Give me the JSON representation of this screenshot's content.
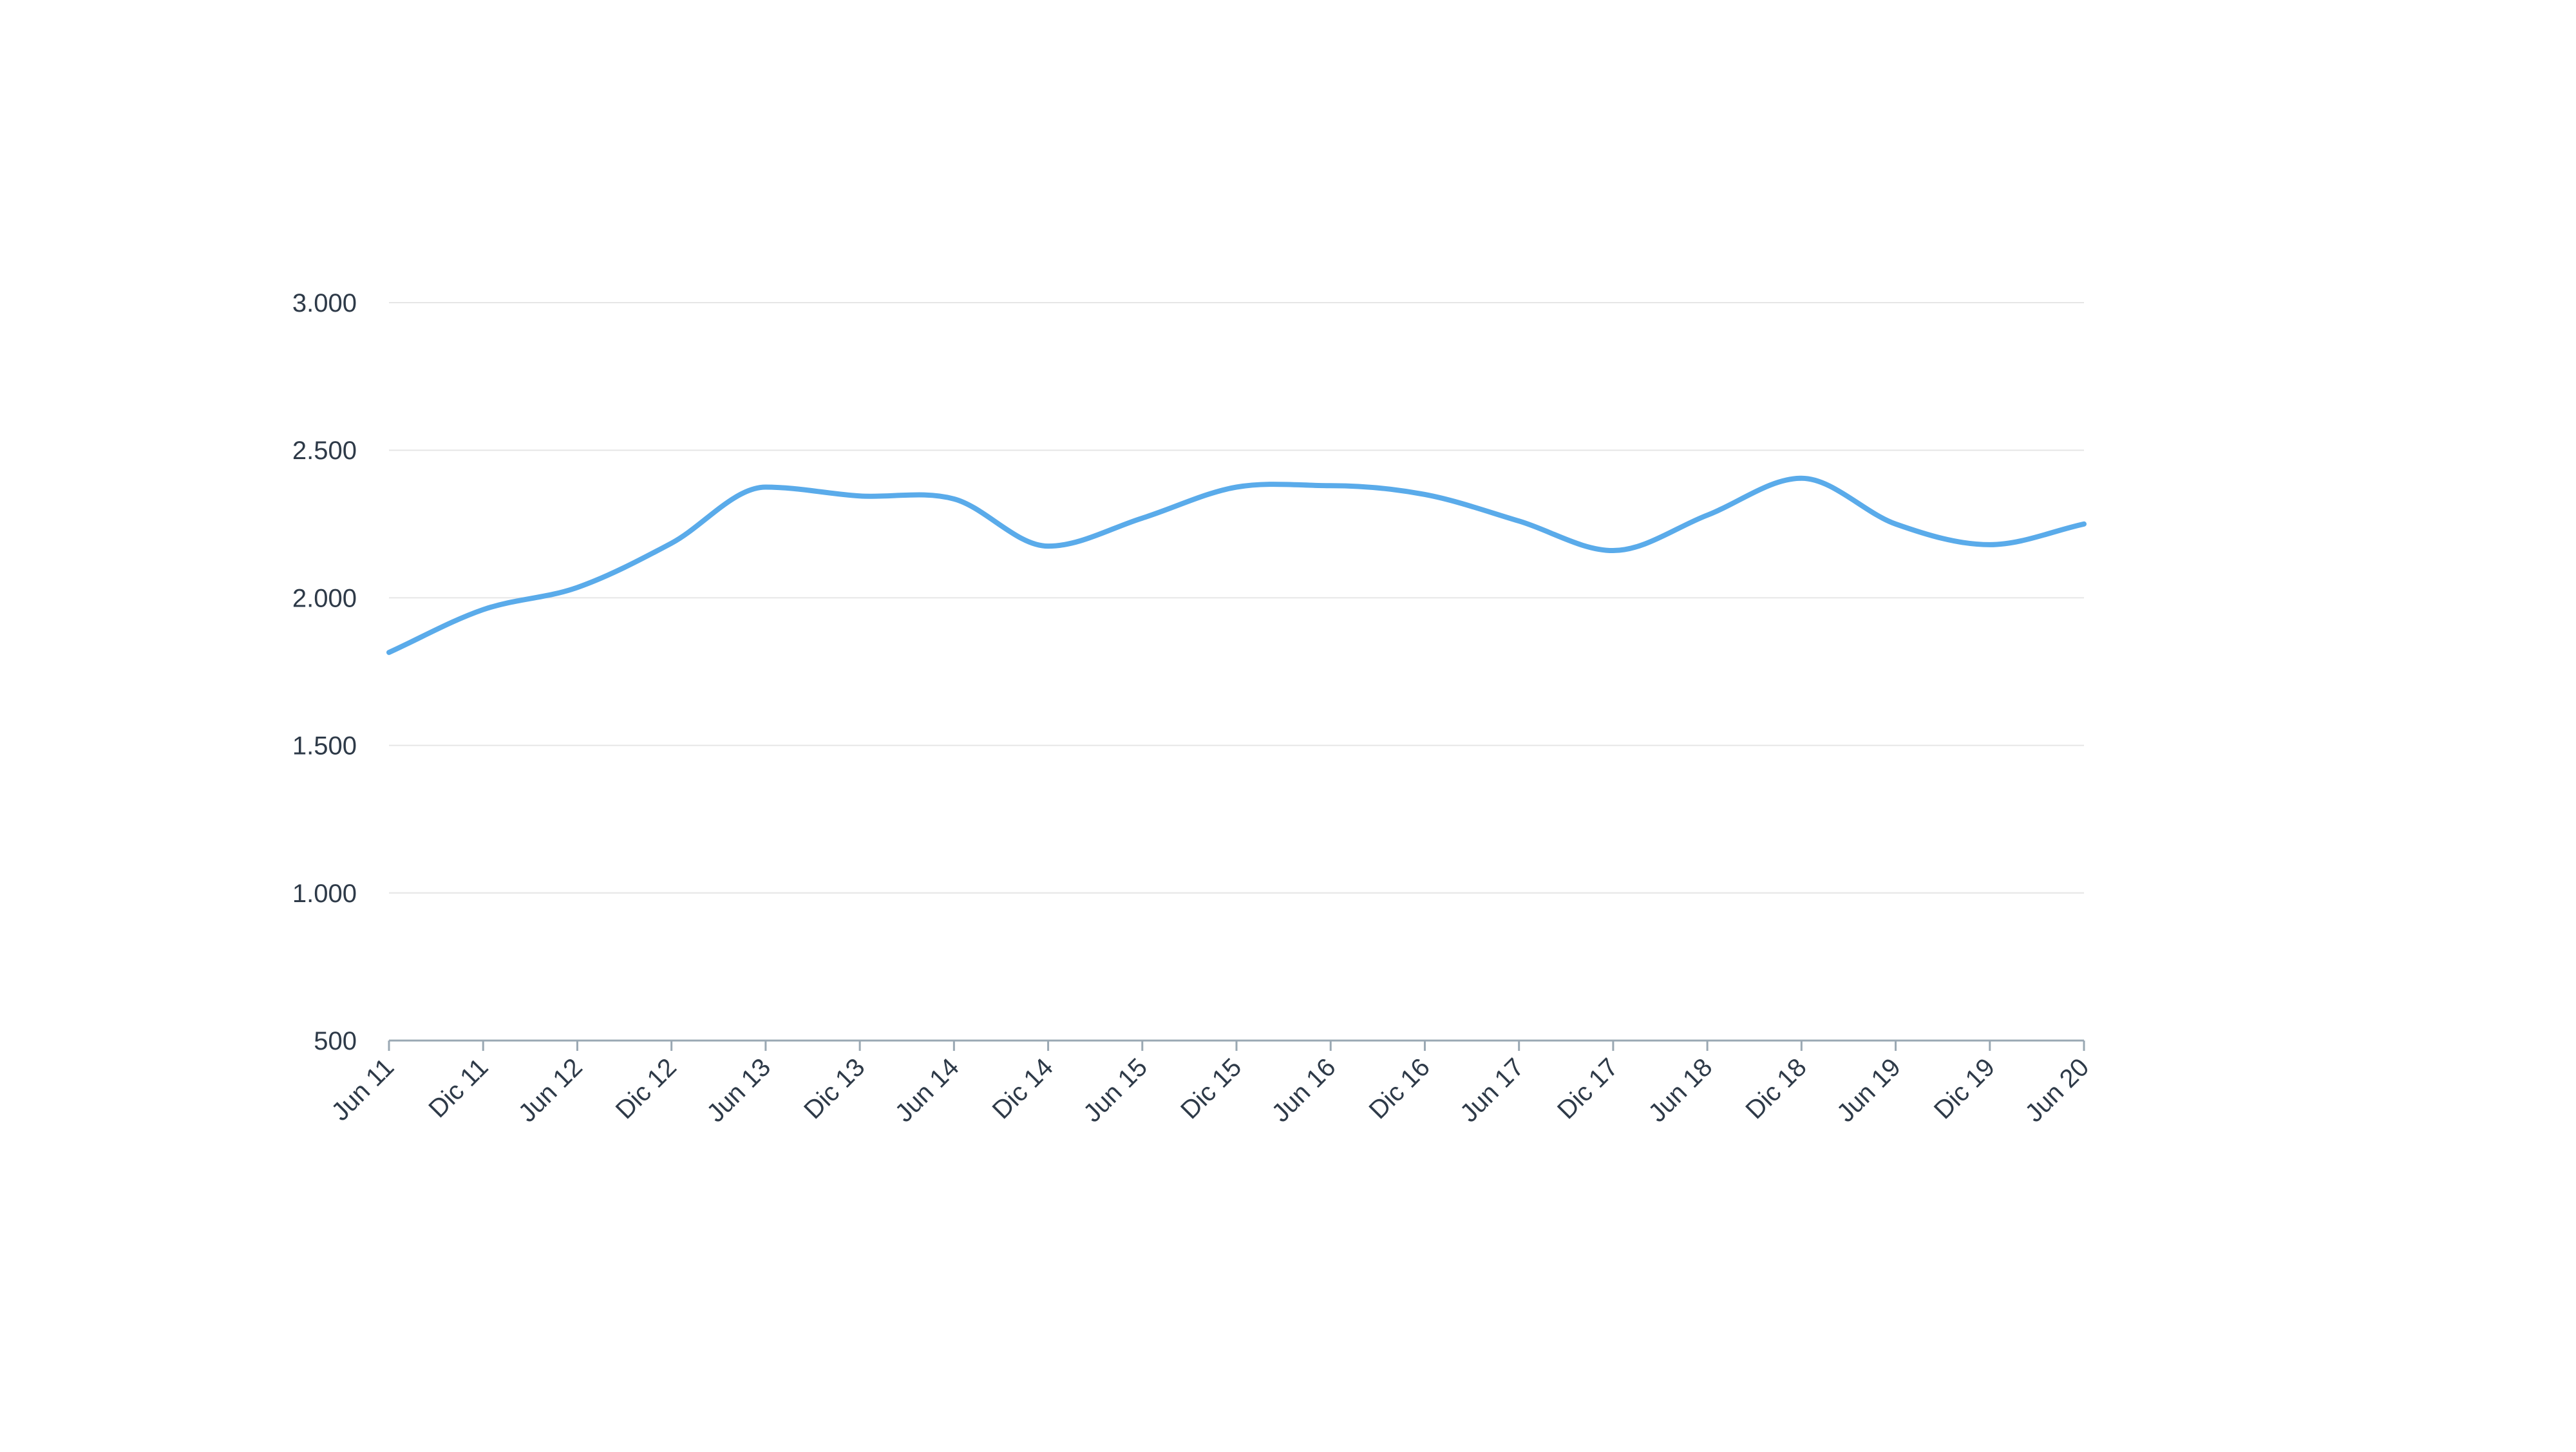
{
  "chart_data": {
    "type": "line",
    "title": "",
    "xlabel": "",
    "ylabel": "",
    "categories": [
      "Jun 11",
      "Dic 11",
      "Jun 12",
      "Dic 12",
      "Jun 13",
      "Dic 13",
      "Jun 14",
      "Dic 14",
      "Jun 15",
      "Dic 15",
      "Jun 16",
      "Dic 16",
      "Jun 17",
      "Dic 17",
      "Jun 18",
      "Dic 18",
      "Jun 19",
      "Dic 19",
      "Jun 20"
    ],
    "series": [
      {
        "values": [
          1815,
          1960,
          2035,
          2185,
          2375,
          2345,
          2335,
          2175,
          2270,
          2375,
          2380,
          2350,
          2260,
          2160,
          2280,
          2405,
          2250,
          2180,
          2250
        ],
        "color": "#5aabea"
      }
    ],
    "y_ticks": [
      500,
      1000,
      1500,
      2000,
      2500,
      3000
    ],
    "y_tick_labels": [
      "500",
      "1.000",
      "1.500",
      "2.000",
      "2.500",
      "3.000"
    ],
    "ylim": [
      500,
      3000
    ],
    "grid": true,
    "legend": "none"
  }
}
